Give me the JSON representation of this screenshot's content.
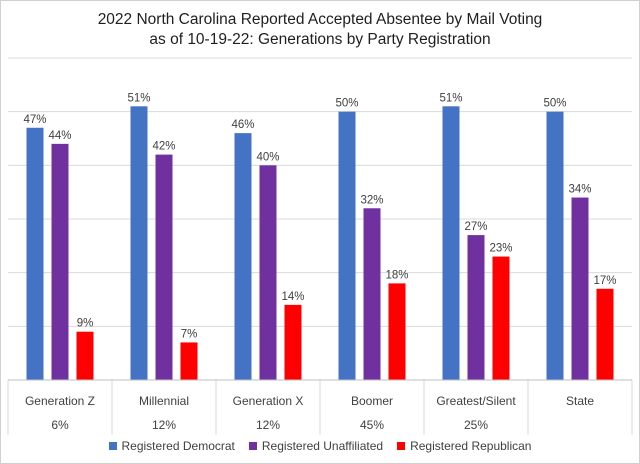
{
  "chart_data": {
    "type": "bar",
    "title_line1": "2022 North Carolina Reported Accepted Absentee by Mail Voting",
    "title_line2": "as of 10-19-22: Generations by Party Registration",
    "categories": [
      "Generation Z",
      "Millennial",
      "Generation X",
      "Boomer",
      "Greatest/Silent",
      "State"
    ],
    "category_shares": [
      "6%",
      "12%",
      "12%",
      "45%",
      "25%",
      ""
    ],
    "series": [
      {
        "name": "Registered Democrat",
        "color": "#4472c4",
        "values": [
          47,
          51,
          46,
          50,
          51,
          50
        ]
      },
      {
        "name": "Registered Unaffiliated",
        "color": "#7030a0",
        "values": [
          44,
          42,
          40,
          32,
          27,
          34
        ]
      },
      {
        "name": "Registered Republican",
        "color": "#ff0000",
        "values": [
          9,
          7,
          14,
          18,
          23,
          17
        ]
      }
    ],
    "value_format": "percent",
    "ylim": [
      0,
      60
    ],
    "gridlines": true,
    "legend_position": "bottom"
  }
}
